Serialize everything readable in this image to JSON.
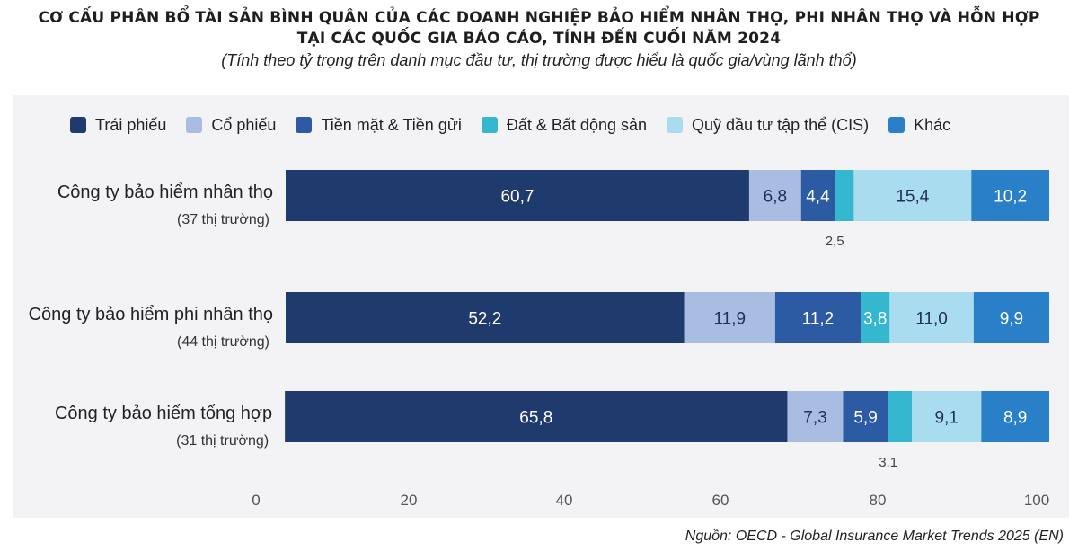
{
  "title_line1": "CƠ CẤU PHÂN BỔ TÀI SẢN BÌNH QUÂN CỦA CÁC DOANH NGHIỆP BẢO HIỂM NHÂN THỌ, PHI NHÂN THỌ VÀ HỖN HỢP",
  "title_line2": "TẠI CÁC QUỐC GIA BÁO CÁO, TÍNH ĐẾN CUỐI NĂM 2024",
  "subtitle": "(Tính theo tỷ trọng trên danh mục đầu tư, thị trường được hiểu là quốc gia/vùng lãnh thổ)",
  "source": "Nguồn: OECD - Global Insurance Market Trends 2025 (EN)",
  "chart_data": {
    "type": "bar",
    "orientation": "horizontal",
    "stacked": true,
    "xlim": [
      0,
      100
    ],
    "x_ticks": [
      "0",
      "20",
      "40",
      "60",
      "80",
      "100"
    ],
    "legend_position": "top",
    "grid": false,
    "categories": [
      {
        "label": "Công ty bảo hiểm nhân thọ",
        "sub": "(37 thị trường)"
      },
      {
        "label": "Công ty bảo hiểm phi nhân thọ",
        "sub": "(44 thị trường)"
      },
      {
        "label": "Công ty bảo hiểm tổng hợp",
        "sub": "(31 thị trường)"
      }
    ],
    "series": [
      {
        "name": "Trái phiếu",
        "color": "#1f3b6e",
        "values": [
          60.7,
          52.2,
          65.8
        ],
        "labels": [
          "60,7",
          "52,2",
          "65,8"
        ],
        "label_color": "#ffffff"
      },
      {
        "name": "Cổ phiếu",
        "color": "#a9bde3",
        "values": [
          6.8,
          11.9,
          7.3
        ],
        "labels": [
          "6,8",
          "11,9",
          "7,3"
        ],
        "label_color": "#1f2f55"
      },
      {
        "name": "Tiền mặt & Tiền gửi",
        "color": "#2c5aa3",
        "values": [
          4.4,
          11.2,
          5.9
        ],
        "labels": [
          "4,4",
          "11,2",
          "5,9"
        ],
        "label_color": "#ffffff"
      },
      {
        "name": "Đất & Bất động sản",
        "color": "#35b8cf",
        "values": [
          2.5,
          3.8,
          3.1
        ],
        "labels": [
          "2,5",
          "3,8",
          "3,1"
        ],
        "label_color": "#ffffff"
      },
      {
        "name": "Quỹ đầu tư tập thể (CIS)",
        "color": "#a9dcef",
        "values": [
          15.4,
          11.0,
          9.1
        ],
        "labels": [
          "15,4",
          "11,0",
          "9,1"
        ],
        "label_color": "#1f2f55"
      },
      {
        "name": "Khác",
        "color": "#2a80c8",
        "values": [
          10.2,
          9.9,
          8.9
        ],
        "labels": [
          "10,2",
          "9,9",
          "8,9"
        ],
        "label_color": "#ffffff"
      }
    ]
  }
}
